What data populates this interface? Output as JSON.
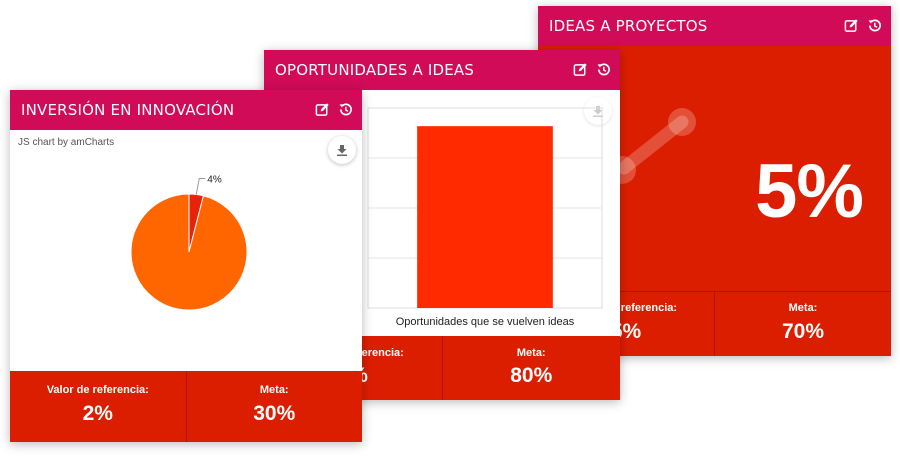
{
  "colors": {
    "header": "#d10b58",
    "footer": "#dc1e00",
    "pie_main": "#ff6600",
    "pie_slice": "#e8230b",
    "bar": "#ff2a00"
  },
  "icons": {
    "edit": "edit-icon",
    "history": "history-icon",
    "download": "download-icon"
  },
  "cards": {
    "ideas_proyectos": {
      "title": "IDEAS A PROYECTOS",
      "value": "5%",
      "footer": {
        "reference_label": "Valor de referencia:",
        "reference_value": "5%",
        "goal_label": "Meta:",
        "goal_value": "70%"
      }
    },
    "oportunidades_ideas": {
      "title": "OPORTUNIDADES A IDEAS",
      "footer": {
        "reference_label": "Valor de referencia:",
        "reference_value": "5%",
        "goal_label": "Meta:",
        "goal_value": "80%"
      }
    },
    "inversion_innovacion": {
      "title": "INVERSIÓN EN INNOVACIÓN",
      "credit": "JS chart by amCharts",
      "footer": {
        "reference_label": "Valor de referencia:",
        "reference_value": "2%",
        "goal_label": "Meta:",
        "goal_value": "30%"
      }
    }
  },
  "chart_data": [
    {
      "type": "bar",
      "categories": [
        "Oportunidades que se vuelven ideas"
      ],
      "values": [
        5
      ],
      "xlabel": "Oportunidades que se vuelven ideas",
      "ylim": [
        0,
        5.5
      ],
      "grid": true
    },
    {
      "type": "pie",
      "slices": [
        {
          "value": 4,
          "label": "4%"
        },
        {
          "value": 96,
          "label": ""
        }
      ]
    }
  ]
}
